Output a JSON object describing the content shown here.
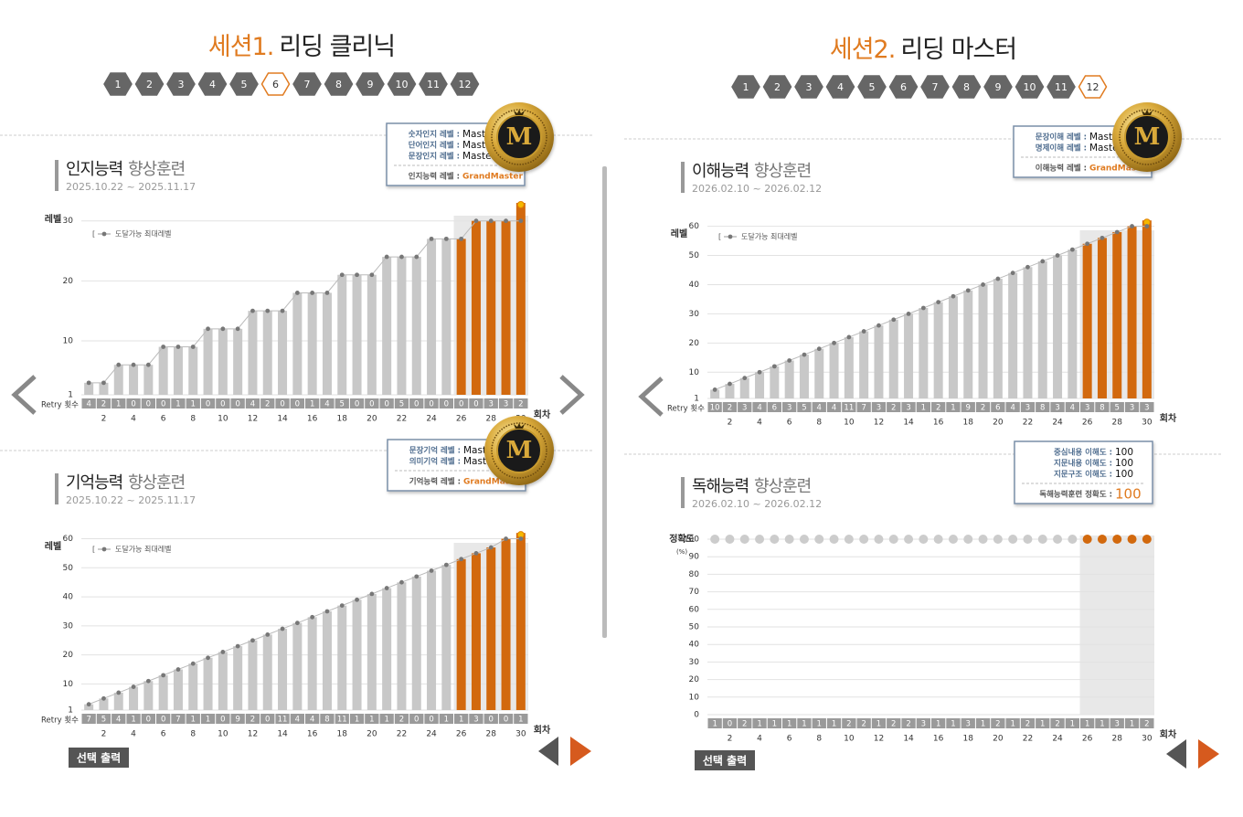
{
  "sessions": [
    {
      "label": "세션1.",
      "name": "리딩 클리닉",
      "steps": [
        1,
        2,
        3,
        4,
        5,
        6,
        7,
        8,
        9,
        10,
        11,
        12
      ],
      "active_step": 6
    },
    {
      "label": "세션2.",
      "name": "리딩 마스터",
      "steps": [
        1,
        2,
        3,
        4,
        5,
        6,
        7,
        8,
        9,
        10,
        11,
        12
      ],
      "active_step": 12
    }
  ],
  "medal": "M",
  "info_boxes": [
    {
      "rows": [
        {
          "label": "숫자인지 레벨 :",
          "value": "Master"
        },
        {
          "label": "단어인지 레벨 :",
          "value": "Master"
        },
        {
          "label": "문장인지 레벨 :",
          "value": "Master"
        }
      ],
      "total": {
        "label": "인지능력 레벨 :",
        "value": "GrandMaster"
      }
    },
    {
      "rows": [
        {
          "label": "문장이해 레벨 :",
          "value": "Master"
        },
        {
          "label": "명제이해 레벨 :",
          "value": "Master"
        }
      ],
      "total": {
        "label": "이해능력 레벨 :",
        "value": "GrandMaster"
      }
    },
    {
      "rows": [
        {
          "label": "문장기억 레벨 :",
          "value": "Master"
        },
        {
          "label": "의미기억 레벨 :",
          "value": "Master"
        }
      ],
      "total": {
        "label": "기억능력 레벨 :",
        "value": "GrandMaster"
      }
    },
    {
      "rows": [
        {
          "label": "중심내용 이해도 :",
          "value": "100"
        },
        {
          "label": "지문내용 이해도 :",
          "value": "100"
        },
        {
          "label": "지문구조 이해도 :",
          "value": "100"
        }
      ],
      "total": {
        "label": "독해능력훈련 정확도 :",
        "value": "100"
      }
    }
  ],
  "buttons": [
    "선택 출력",
    "선택 출력"
  ],
  "chart_data": [
    {
      "type": "bar",
      "title": "인지능력",
      "title_rest": "향상훈련",
      "date": "2025.10.22 ~ 2025.11.17",
      "ylabel": "레벨",
      "xlabel": "회차",
      "retry_label": "Retry 횟수",
      "categories": [
        null,
        "2",
        null,
        "4",
        null,
        "6",
        null,
        "8",
        null,
        "10",
        null,
        "12",
        null,
        "14",
        null,
        "16",
        null,
        "18",
        null,
        "20",
        null,
        "22",
        null,
        "24",
        null,
        "26",
        null,
        "28",
        null,
        "30"
      ],
      "values": [
        3,
        3,
        6,
        6,
        6,
        9,
        9,
        9,
        12,
        12,
        12,
        15,
        15,
        15,
        18,
        18,
        18,
        21,
        21,
        21,
        24,
        24,
        24,
        27,
        27,
        27,
        30,
        30,
        30,
        33
      ],
      "colors": [
        "#c8c8c8",
        "#c8c8c8",
        "#c8c8c8",
        "#c8c8c8",
        "#c8c8c8",
        "#c8c8c8",
        "#c8c8c8",
        "#c8c8c8",
        "#c8c8c8",
        "#c8c8c8",
        "#c8c8c8",
        "#c8c8c8",
        "#c8c8c8",
        "#c8c8c8",
        "#c8c8c8",
        "#c8c8c8",
        "#c8c8c8",
        "#c8c8c8",
        "#c8c8c8",
        "#c8c8c8",
        "#c8c8c8",
        "#c8c8c8",
        "#c8c8c8",
        "#c8c8c8",
        "#c8c8c8",
        "#d2690e",
        "#d2690e",
        "#d2690e",
        "#d2690e",
        "#d2690e"
      ],
      "series": [
        {
          "name": "도달가능 최대레벨",
          "color": "#777777",
          "values": [
            3,
            3,
            6,
            6,
            6,
            9,
            9,
            9,
            12,
            12,
            12,
            15,
            15,
            15,
            18,
            18,
            18,
            21,
            21,
            21,
            24,
            24,
            24,
            27,
            27,
            27,
            30,
            30,
            30,
            30
          ]
        }
      ],
      "retry": [
        4,
        2,
        1,
        0,
        0,
        0,
        1,
        1,
        0,
        0,
        0,
        4,
        2,
        0,
        0,
        1,
        4,
        5,
        0,
        0,
        0,
        5,
        0,
        0,
        0,
        0,
        0,
        3,
        3,
        2
      ],
      "ylim": [
        1,
        33
      ],
      "yticks": [
        1,
        10,
        20,
        30
      ],
      "grid": true
    },
    {
      "type": "bar",
      "title": "이해능력",
      "title_rest": "향상훈련",
      "date": "2026.02.10 ~ 2026.02.12",
      "ylabel": "레벨",
      "xlabel": "회차",
      "retry_label": "Retry 횟수",
      "categories": [
        null,
        "2",
        null,
        "4",
        null,
        "6",
        null,
        "8",
        null,
        "10",
        null,
        "12",
        null,
        "14",
        null,
        "16",
        null,
        "18",
        null,
        "20",
        null,
        "22",
        null,
        "24",
        null,
        "26",
        null,
        "28",
        null,
        "30"
      ],
      "values": [
        4,
        6,
        8,
        10,
        12,
        14,
        16,
        18,
        20,
        22,
        24,
        26,
        28,
        30,
        32,
        34,
        36,
        38,
        40,
        42,
        44,
        46,
        48,
        50,
        52,
        54,
        56,
        58,
        60,
        62
      ],
      "colors": [
        "#c8c8c8",
        "#c8c8c8",
        "#c8c8c8",
        "#c8c8c8",
        "#c8c8c8",
        "#c8c8c8",
        "#c8c8c8",
        "#c8c8c8",
        "#c8c8c8",
        "#c8c8c8",
        "#c8c8c8",
        "#c8c8c8",
        "#c8c8c8",
        "#c8c8c8",
        "#c8c8c8",
        "#c8c8c8",
        "#c8c8c8",
        "#c8c8c8",
        "#c8c8c8",
        "#c8c8c8",
        "#c8c8c8",
        "#c8c8c8",
        "#c8c8c8",
        "#c8c8c8",
        "#c8c8c8",
        "#d2690e",
        "#d2690e",
        "#d2690e",
        "#d2690e",
        "#d2690e"
      ],
      "series": [
        {
          "name": "도달가능 최대레벨",
          "color": "#777777",
          "values": [
            4,
            6,
            8,
            10,
            12,
            14,
            16,
            18,
            20,
            22,
            24,
            26,
            28,
            30,
            32,
            34,
            36,
            38,
            40,
            42,
            44,
            46,
            48,
            50,
            52,
            54,
            56,
            58,
            60,
            60
          ]
        }
      ],
      "retry": [
        10,
        2,
        3,
        4,
        6,
        3,
        5,
        4,
        4,
        11,
        7,
        3,
        2,
        3,
        1,
        2,
        1,
        9,
        2,
        6,
        4,
        3,
        8,
        3,
        4,
        3,
        8,
        5,
        3,
        3
      ],
      "ylim": [
        1,
        63
      ],
      "yticks": [
        1,
        10,
        20,
        30,
        40,
        50,
        60
      ],
      "grid": true
    },
    {
      "type": "bar",
      "title": "기억능력",
      "title_rest": "향상훈련",
      "date": "2025.10.22 ~ 2025.11.17",
      "ylabel": "레벨",
      "xlabel": "회차",
      "retry_label": "Retry 횟수",
      "categories": [
        null,
        "2",
        null,
        "4",
        null,
        "6",
        null,
        "8",
        null,
        "10",
        null,
        "12",
        null,
        "14",
        null,
        "16",
        null,
        "18",
        null,
        "20",
        null,
        "22",
        null,
        "24",
        null,
        "26",
        null,
        "28",
        null,
        "30"
      ],
      "values": [
        3,
        5,
        7,
        9,
        11,
        13,
        15,
        17,
        19,
        21,
        23,
        25,
        27,
        29,
        31,
        33,
        35,
        37,
        39,
        41,
        43,
        45,
        47,
        49,
        51,
        53,
        55,
        57,
        60,
        62
      ],
      "colors": [
        "#c8c8c8",
        "#c8c8c8",
        "#c8c8c8",
        "#c8c8c8",
        "#c8c8c8",
        "#c8c8c8",
        "#c8c8c8",
        "#c8c8c8",
        "#c8c8c8",
        "#c8c8c8",
        "#c8c8c8",
        "#c8c8c8",
        "#c8c8c8",
        "#c8c8c8",
        "#c8c8c8",
        "#c8c8c8",
        "#c8c8c8",
        "#c8c8c8",
        "#c8c8c8",
        "#c8c8c8",
        "#c8c8c8",
        "#c8c8c8",
        "#c8c8c8",
        "#c8c8c8",
        "#c8c8c8",
        "#d2690e",
        "#d2690e",
        "#d2690e",
        "#d2690e",
        "#d2690e"
      ],
      "series": [
        {
          "name": "도달가능 최대레벨",
          "color": "#777777",
          "values": [
            3,
            5,
            7,
            9,
            11,
            13,
            15,
            17,
            19,
            21,
            23,
            25,
            27,
            29,
            31,
            33,
            35,
            37,
            39,
            41,
            43,
            45,
            47,
            49,
            51,
            53,
            55,
            57,
            60,
            60
          ]
        }
      ],
      "retry": [
        7,
        5,
        4,
        1,
        0,
        0,
        7,
        1,
        1,
        0,
        9,
        2,
        0,
        11,
        4,
        4,
        8,
        11,
        1,
        1,
        1,
        2,
        0,
        0,
        1,
        1,
        3,
        0,
        0,
        1
      ],
      "ylim": [
        1,
        63
      ],
      "yticks": [
        1,
        10,
        20,
        30,
        40,
        50,
        60
      ],
      "grid": true
    },
    {
      "type": "dot",
      "title": "독해능력",
      "title_rest": "향상훈련",
      "date": "2026.02.10 ~ 2026.02.12",
      "ylabel": "정확도",
      "ylabel_unit": "(%)",
      "xlabel": "회차",
      "retry_label": null,
      "categories": [
        null,
        "2",
        null,
        "4",
        null,
        "6",
        null,
        "8",
        null,
        "10",
        null,
        "12",
        null,
        "14",
        null,
        "16",
        null,
        "18",
        null,
        "20",
        null,
        "22",
        null,
        "24",
        null,
        "26",
        null,
        "28",
        null,
        "30"
      ],
      "values": [
        100,
        100,
        100,
        100,
        100,
        100,
        100,
        100,
        100,
        100,
        100,
        100,
        100,
        100,
        100,
        100,
        100,
        100,
        100,
        100,
        100,
        100,
        100,
        100,
        100,
        100,
        100,
        100,
        100,
        100
      ],
      "colors": [
        "#cccccc",
        "#cccccc",
        "#cccccc",
        "#cccccc",
        "#cccccc",
        "#cccccc",
        "#cccccc",
        "#cccccc",
        "#cccccc",
        "#cccccc",
        "#cccccc",
        "#cccccc",
        "#cccccc",
        "#cccccc",
        "#cccccc",
        "#cccccc",
        "#cccccc",
        "#cccccc",
        "#cccccc",
        "#cccccc",
        "#cccccc",
        "#cccccc",
        "#cccccc",
        "#cccccc",
        "#cccccc",
        "#d2690e",
        "#d2690e",
        "#d2690e",
        "#d2690e",
        "#d2690e"
      ],
      "series": [],
      "retry": [
        1,
        0,
        2,
        1,
        1,
        1,
        1,
        1,
        1,
        2,
        2,
        1,
        2,
        2,
        3,
        1,
        1,
        3,
        1,
        2,
        1,
        2,
        1,
        2,
        1,
        1,
        1,
        3,
        1,
        2
      ],
      "ylim": [
        0,
        100
      ],
      "yticks": [
        0,
        10,
        20,
        30,
        40,
        50,
        60,
        70,
        80,
        90,
        100
      ],
      "grid": true
    }
  ]
}
